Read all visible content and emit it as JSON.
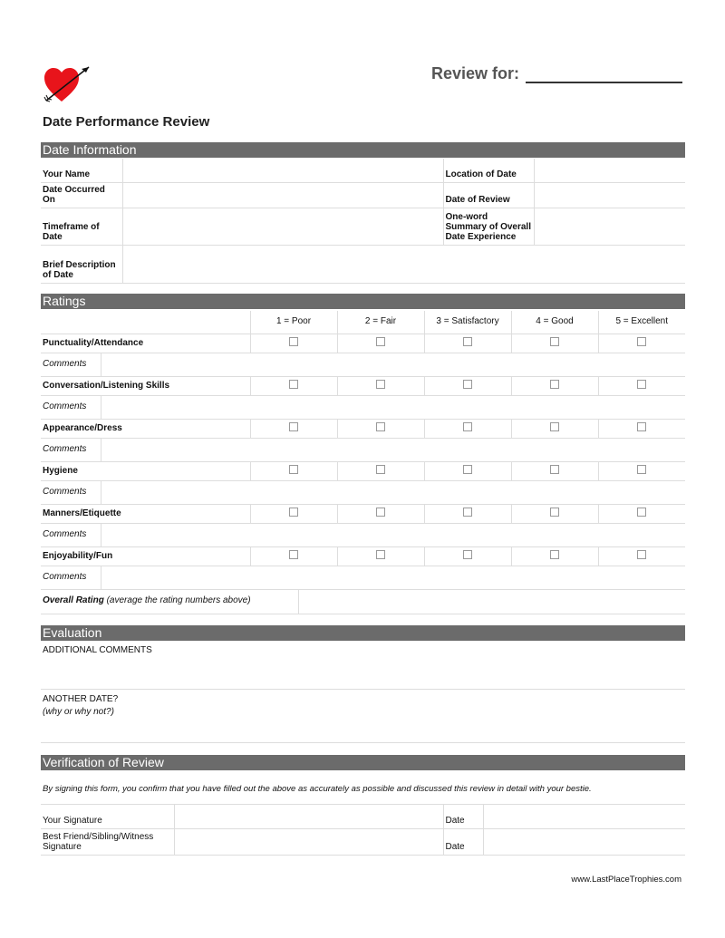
{
  "header": {
    "review_for_label": "Review for:",
    "title": "Date Performance Review",
    "logo": "heart-with-arrow-icon"
  },
  "date_info": {
    "section_title": "Date Information",
    "left_labels": [
      "Your Name",
      "Date Occurred On",
      "Timeframe of Date",
      "Brief Description of Date"
    ],
    "right_labels": [
      "Location of Date",
      "Date of Review",
      "One-word Summary of Overall Date Experience"
    ]
  },
  "ratings": {
    "section_title": "Ratings",
    "scale": [
      "1 = Poor",
      "2 = Fair",
      "3 = Satisfactory",
      "4 = Good",
      "5 = Excellent"
    ],
    "categories": [
      "Punctuality/Attendance",
      "Conversation/Listening Skills",
      "Appearance/Dress",
      "Hygiene",
      "Manners/Etiquette",
      "Enjoyability/Fun"
    ],
    "comments_label": "Comments",
    "overall_label": "Overall Rating",
    "overall_note": "(average the rating numbers above)"
  },
  "evaluation": {
    "section_title": "Evaluation",
    "additional_comments": "ADDITIONAL COMMENTS",
    "another_date": "ANOTHER DATE?",
    "another_date_note": "(why or why not?)"
  },
  "verification": {
    "section_title": "Verification of Review",
    "statement": "By signing this form, you confirm that you have filled out the above as accurately as possible and discussed this review in detail with your bestie.",
    "your_signature": "Your Signature",
    "witness_signature": "Best Friend/Sibling/Witness Signature",
    "date_label": "Date"
  },
  "footer": {
    "website": "www.LastPlaceTrophies.com"
  }
}
